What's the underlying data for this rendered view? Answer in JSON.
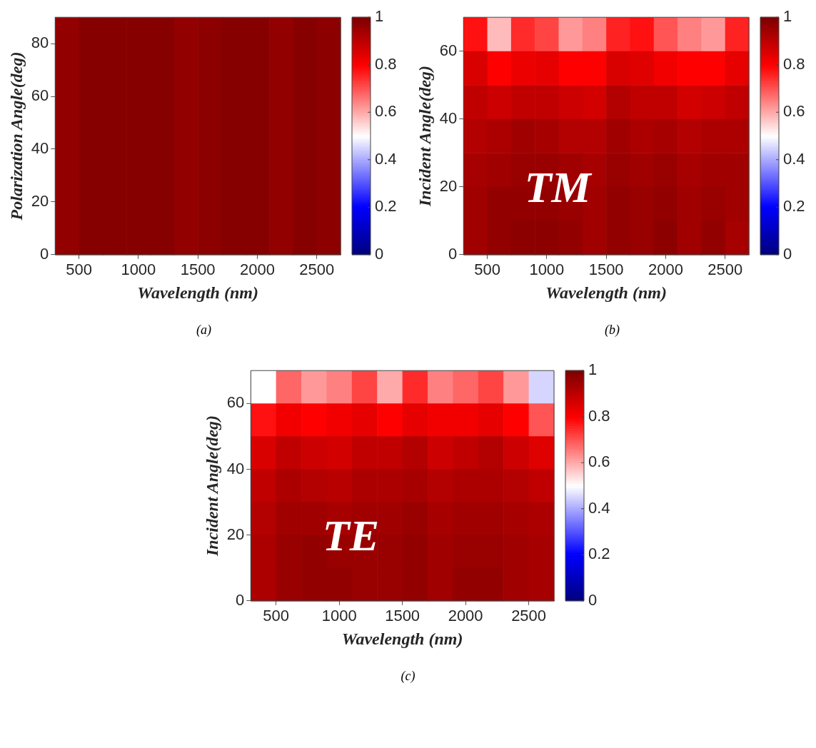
{
  "chart_data": [
    {
      "type": "heatmap",
      "xlabel": "Wavelength (nm)",
      "ylabel": "Polarization Angle(deg)",
      "xlim": [
        300,
        2700
      ],
      "xticks": [
        500,
        1000,
        1500,
        2000,
        2500
      ],
      "ylim": [
        0,
        90
      ],
      "yticks": [
        0,
        20,
        40,
        60,
        80
      ],
      "clim": [
        0,
        1
      ],
      "cticks": [
        0,
        0.2,
        0.4,
        0.6,
        0.8,
        1
      ],
      "annotations": [
        "(a)"
      ],
      "cells": [
        [
          0.97,
          0.99,
          0.99,
          0.99,
          0.99,
          0.97,
          0.98,
          0.99,
          0.99,
          0.97,
          0.99,
          0.98
        ]
      ]
    },
    {
      "type": "heatmap",
      "xlabel": "Wavelength (nm)",
      "ylabel": "Incident Angle(deg)",
      "xlim": [
        300,
        2700
      ],
      "xticks": [
        500,
        1000,
        1500,
        2000,
        2500
      ],
      "ylim": [
        0,
        70
      ],
      "yticks": [
        0,
        20,
        40,
        60
      ],
      "clim": [
        0,
        1
      ],
      "cticks": [
        0,
        0.2,
        0.4,
        0.6,
        0.8,
        1
      ],
      "annotations": [
        "TM",
        "(b)"
      ],
      "cells": [
        [
          0.78,
          0.58,
          0.75,
          0.72,
          0.62,
          0.65,
          0.76,
          0.78,
          0.7,
          0.65,
          0.62,
          0.76
        ],
        [
          0.86,
          0.8,
          0.83,
          0.84,
          0.8,
          0.8,
          0.86,
          0.85,
          0.82,
          0.8,
          0.8,
          0.84
        ],
        [
          0.9,
          0.88,
          0.9,
          0.9,
          0.88,
          0.87,
          0.92,
          0.9,
          0.9,
          0.87,
          0.88,
          0.9
        ],
        [
          0.92,
          0.93,
          0.95,
          0.94,
          0.92,
          0.92,
          0.95,
          0.93,
          0.94,
          0.92,
          0.93,
          0.93
        ],
        [
          0.94,
          0.95,
          0.96,
          0.96,
          0.95,
          0.94,
          0.96,
          0.95,
          0.96,
          0.94,
          0.95,
          0.95
        ],
        [
          0.95,
          0.97,
          0.97,
          0.97,
          0.96,
          0.95,
          0.97,
          0.96,
          0.97,
          0.95,
          0.96,
          0.95
        ],
        [
          0.95,
          0.97,
          0.98,
          0.98,
          0.97,
          0.95,
          0.97,
          0.96,
          0.98,
          0.95,
          0.97,
          0.94
        ]
      ]
    },
    {
      "type": "heatmap",
      "xlabel": "Wavelength (nm)",
      "ylabel": "Incident Angle(deg)",
      "xlim": [
        300,
        2700
      ],
      "xticks": [
        500,
        1000,
        1500,
        2000,
        2500
      ],
      "ylim": [
        0,
        70
      ],
      "yticks": [
        0,
        20,
        40,
        60
      ],
      "clim": [
        0,
        1
      ],
      "cticks": [
        0,
        0.2,
        0.4,
        0.6,
        0.8,
        1
      ],
      "annotations": [
        "TE",
        "(c)"
      ],
      "cells": [
        [
          0.5,
          0.68,
          0.62,
          0.65,
          0.72,
          0.6,
          0.75,
          0.65,
          0.68,
          0.72,
          0.62,
          0.45
        ],
        [
          0.78,
          0.82,
          0.8,
          0.82,
          0.84,
          0.8,
          0.84,
          0.82,
          0.82,
          0.84,
          0.8,
          0.7
        ],
        [
          0.86,
          0.9,
          0.88,
          0.87,
          0.9,
          0.9,
          0.92,
          0.88,
          0.9,
          0.92,
          0.88,
          0.85
        ],
        [
          0.9,
          0.93,
          0.92,
          0.91,
          0.93,
          0.93,
          0.94,
          0.92,
          0.93,
          0.93,
          0.92,
          0.9
        ],
        [
          0.92,
          0.95,
          0.95,
          0.94,
          0.95,
          0.95,
          0.96,
          0.94,
          0.95,
          0.95,
          0.94,
          0.93
        ],
        [
          0.93,
          0.96,
          0.97,
          0.96,
          0.96,
          0.96,
          0.97,
          0.95,
          0.96,
          0.96,
          0.95,
          0.94
        ],
        [
          0.93,
          0.96,
          0.97,
          0.97,
          0.96,
          0.96,
          0.97,
          0.95,
          0.97,
          0.97,
          0.95,
          0.94
        ]
      ]
    }
  ]
}
